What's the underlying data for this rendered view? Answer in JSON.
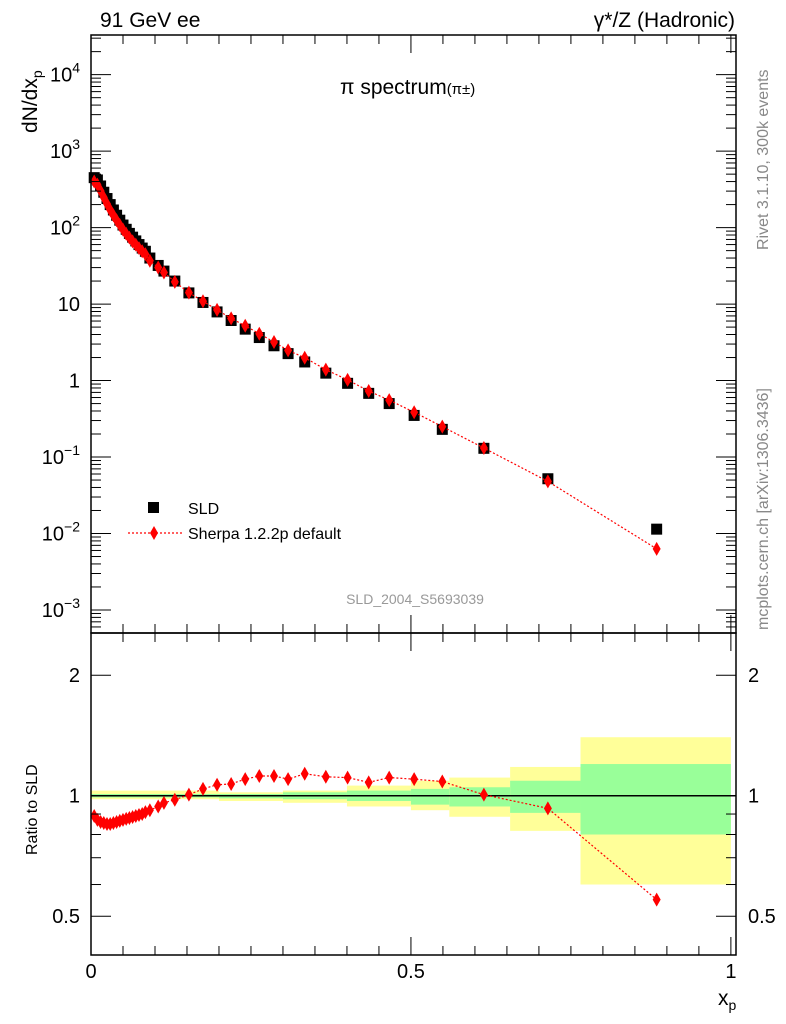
{
  "header": {
    "left_label": "91 GeV ee",
    "right_label": "γ*/Z (Hadronic)",
    "watermark": "SLD_2004_S5693039",
    "side_top": "Rivet 3.1.10,  300k events",
    "side_bottom": "mcplots.cern.ch [arXiv:1306.3436]"
  },
  "colors": {
    "data": "#000000",
    "mc": "#ff0000",
    "band_total": "#ffff99",
    "band_stat": "#99ff99",
    "side_text": "#888888"
  },
  "chart_data": [
    {
      "type": "scatter",
      "title": "π spectrum",
      "title_suffix": "(π±)",
      "ylabel": "dN/dx",
      "ylabel_sub": "p",
      "yscale": "log",
      "ylim": [
        0.0005,
        33000
      ],
      "xlim": [
        0,
        1.008
      ],
      "yticks": [
        {
          "v": 10000,
          "label": "10",
          "exp": "4"
        },
        {
          "v": 1000,
          "label": "10",
          "exp": "3"
        },
        {
          "v": 100,
          "label": "10",
          "exp": "2"
        },
        {
          "v": 10,
          "label": "10",
          "exp": ""
        },
        {
          "v": 1,
          "label": "1",
          "exp": ""
        },
        {
          "v": 0.1,
          "label": "10",
          "exp": "−1"
        },
        {
          "v": 0.01,
          "label": "10",
          "exp": "−2"
        },
        {
          "v": 0.001,
          "label": "10",
          "exp": "−3"
        }
      ],
      "legend": {
        "placement": "bottom-left",
        "entries": [
          "SLD",
          "Sherpa 1.2.2p default"
        ]
      },
      "x": [
        0.005,
        0.01,
        0.015,
        0.02,
        0.025,
        0.03,
        0.035,
        0.04,
        0.045,
        0.05,
        0.055,
        0.06,
        0.065,
        0.07,
        0.075,
        0.08,
        0.085,
        0.092,
        0.105,
        0.114,
        0.131,
        0.153,
        0.175,
        0.197,
        0.219,
        0.241,
        0.263,
        0.286,
        0.308,
        0.334,
        0.367,
        0.401,
        0.434,
        0.466,
        0.505,
        0.549,
        0.614,
        0.714,
        0.884
      ],
      "series": [
        {
          "name": "SLD",
          "values": [
            450,
            420,
            350,
            290,
            240,
            200,
            170,
            145,
            125,
            108,
            95,
            84,
            75,
            67,
            60,
            54,
            49,
            40,
            32,
            27,
            20,
            14,
            10.5,
            7.9,
            6.1,
            4.7,
            3.65,
            2.85,
            2.25,
            1.75,
            1.25,
            0.92,
            0.68,
            0.5,
            0.35,
            0.23,
            0.13,
            0.052,
            0.0114
          ]
        },
        {
          "name": "Sherpa 1.2.2p default",
          "values": [
            400,
            365,
            301,
            248,
            204,
            170,
            145,
            125,
            108,
            94,
            83,
            74,
            66,
            60,
            54,
            49,
            45,
            36.8,
            30.1,
            25.9,
            19.5,
            14.1,
            10.9,
            8.4,
            6.5,
            5.2,
            4.1,
            3.19,
            2.48,
            1.99,
            1.39,
            1.02,
            0.73,
            0.555,
            0.385,
            0.25,
            0.131,
            0.048,
            0.0063
          ]
        }
      ]
    },
    {
      "type": "scatter",
      "ylabel": "Ratio to SLD",
      "xlabel": "x",
      "xlabel_sub": "p",
      "yscale": "log",
      "ylim": [
        0.4,
        2.55
      ],
      "xlim": [
        0,
        1.008
      ],
      "xticks": [
        {
          "v": 0,
          "label": "0"
        },
        {
          "v": 0.5,
          "label": "0.5"
        },
        {
          "v": 1,
          "label": "1"
        }
      ],
      "yticks": [
        {
          "v": 2,
          "label": "2"
        },
        {
          "v": 1,
          "label": "1"
        },
        {
          "v": 0.5,
          "label": "0.5"
        }
      ],
      "bands": [
        {
          "xlo": 0.0,
          "xhi": 0.2,
          "total": [
            0.98,
            1.03
          ],
          "stat": [
            0.99,
            1.01
          ]
        },
        {
          "xlo": 0.2,
          "xhi": 0.3,
          "total": [
            0.97,
            1.02
          ],
          "stat": [
            0.985,
            1.01
          ]
        },
        {
          "xlo": 0.3,
          "xhi": 0.4,
          "total": [
            0.96,
            1.03
          ],
          "stat": [
            0.98,
            1.02
          ]
        },
        {
          "xlo": 0.4,
          "xhi": 0.5,
          "total": [
            0.94,
            1.06
          ],
          "stat": [
            0.97,
            1.03
          ]
        },
        {
          "xlo": 0.5,
          "xhi": 0.56,
          "total": [
            0.92,
            1.09
          ],
          "stat": [
            0.95,
            1.04
          ]
        },
        {
          "xlo": 0.56,
          "xhi": 0.655,
          "total": [
            0.886,
            1.11
          ],
          "stat": [
            0.94,
            1.05
          ]
        },
        {
          "xlo": 0.655,
          "xhi": 0.765,
          "total": [
            0.817,
            1.18
          ],
          "stat": [
            0.906,
            1.09
          ]
        },
        {
          "xlo": 0.765,
          "xhi": 1.0,
          "total": [
            0.6,
            1.4
          ],
          "stat": [
            0.8,
            1.2
          ]
        }
      ],
      "series": [
        {
          "name": "Sherpa 1.2.2p default / SLD",
          "values": [
            0.89,
            0.87,
            0.86,
            0.855,
            0.85,
            0.85,
            0.855,
            0.86,
            0.865,
            0.87,
            0.875,
            0.88,
            0.885,
            0.89,
            0.895,
            0.9,
            0.91,
            0.92,
            0.94,
            0.96,
            0.977,
            1.006,
            1.04,
            1.065,
            1.07,
            1.1,
            1.12,
            1.12,
            1.1,
            1.135,
            1.115,
            1.11,
            1.08,
            1.11,
            1.1,
            1.085,
            1.006,
            0.93,
            0.55
          ]
        }
      ]
    }
  ]
}
